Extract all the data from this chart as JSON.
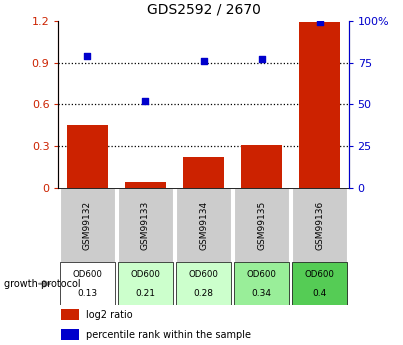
{
  "title": "GDS2592 / 2670",
  "samples": [
    "GSM99132",
    "GSM99133",
    "GSM99134",
    "GSM99135",
    "GSM99136"
  ],
  "log2_ratio": [
    0.45,
    0.04,
    0.22,
    0.31,
    1.19
  ],
  "percentile_rank_pct": [
    79,
    52,
    76,
    77,
    99
  ],
  "bar_color": "#cc2200",
  "dot_color": "#0000cc",
  "ylim_left": [
    0,
    1.2
  ],
  "ylim_right": [
    0,
    100
  ],
  "yticks_left": [
    0,
    0.3,
    0.6,
    0.9,
    1.2
  ],
  "yticks_right": [
    0,
    25,
    50,
    75,
    100
  ],
  "yticklabels_right": [
    "0",
    "25",
    "50",
    "75",
    "100%"
  ],
  "growth_protocol_label": "growth protocol",
  "od600_values": [
    "0.13",
    "0.21",
    "0.28",
    "0.34",
    "0.4"
  ],
  "od600_colors": [
    "#ffffff",
    "#ccffcc",
    "#ccffcc",
    "#99ee99",
    "#55cc55"
  ],
  "legend_log2": "log2 ratio",
  "legend_pct": "percentile rank within the sample",
  "bg_color": "#ffffff",
  "label_area_color": "#cccccc",
  "figsize": [
    4.03,
    3.45
  ],
  "dpi": 100
}
